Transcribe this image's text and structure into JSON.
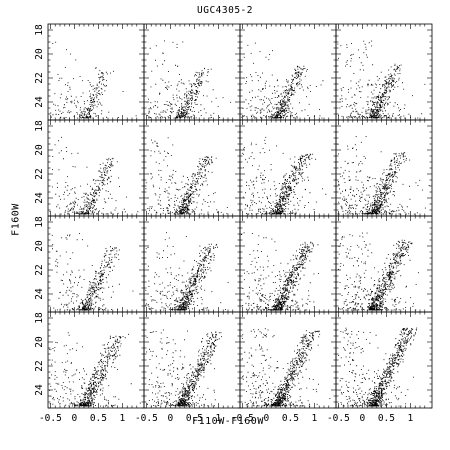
{
  "chart_data": {
    "type": "scatter",
    "title": "UGC4305-2",
    "xlabel": "F110W-F160W",
    "ylabel": "F160W",
    "xlim": [
      -0.55,
      1.45
    ],
    "ylim": [
      25.5,
      17.5
    ],
    "y_inverted": true,
    "grid_layout": {
      "rows": 4,
      "cols": 4
    },
    "x_tick_labels": [
      "-0.5",
      "0",
      "0.5",
      "1"
    ],
    "y_tick_labels": [
      "18",
      "20",
      "22",
      "24"
    ],
    "x_ticks": [
      -0.5,
      0,
      0.5,
      1
    ],
    "y_ticks": [
      18,
      20,
      22,
      24
    ],
    "panels_note": "16 color-magnitude diagram panels; point density increases left-to-right and top-to-bottom",
    "panel_density": [
      [
        280,
        420,
        500,
        560
      ],
      [
        380,
        520,
        620,
        680
      ],
      [
        460,
        600,
        720,
        780
      ],
      [
        620,
        720,
        820,
        860
      ]
    ],
    "grid": false,
    "legend": "none",
    "colors": {
      "points": "#000000",
      "axes": "#000000",
      "background": "#ffffff"
    }
  }
}
